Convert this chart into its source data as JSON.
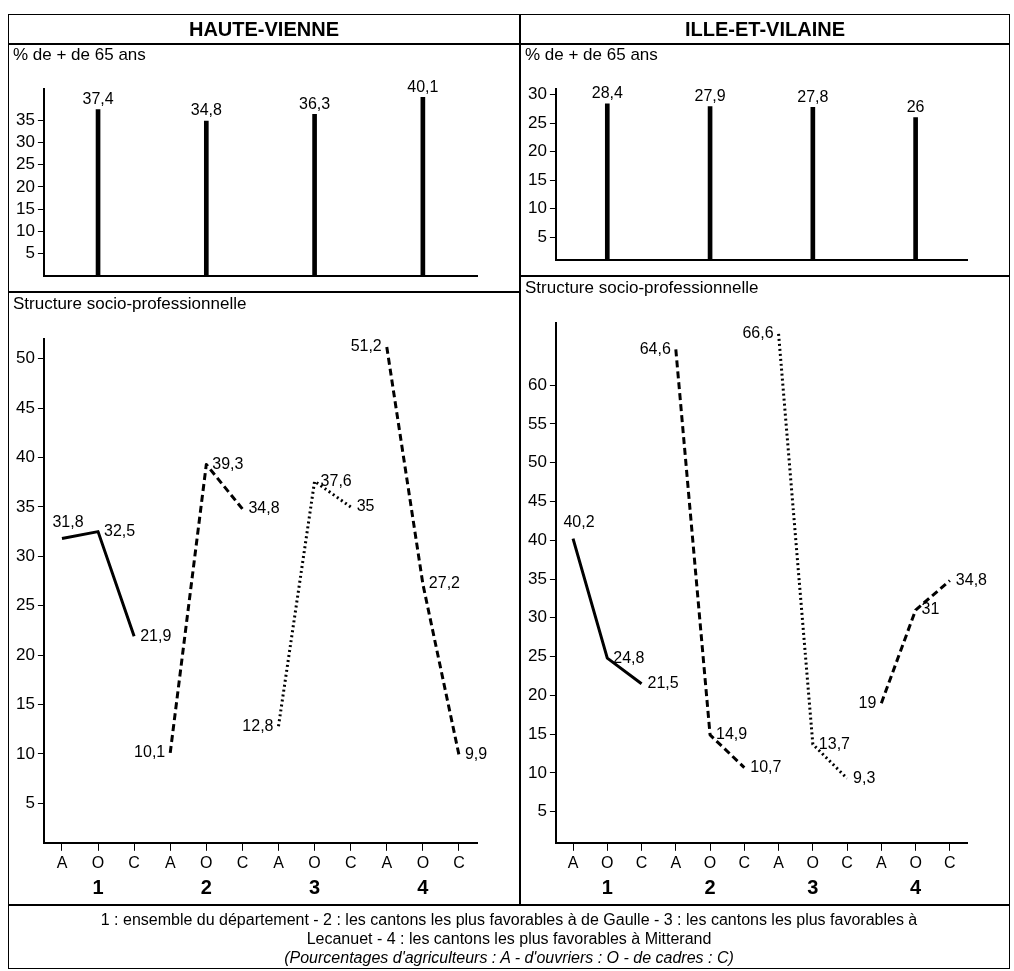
{
  "chart_data": [
    {
      "type": "bar",
      "title": "HAUTE-VIENNE",
      "ylabel": "% de + de 65 ans",
      "categories": [
        null,
        null,
        null,
        null
      ],
      "values": [
        37.4,
        34.8,
        36.3,
        40.1
      ],
      "value_labels": [
        "37,4",
        "34,8",
        "36,3",
        "40,1"
      ],
      "color": "#000000",
      "ylim": [
        0,
        42
      ],
      "yticks": [
        5,
        10,
        15,
        20,
        25,
        30,
        35
      ],
      "grid": false,
      "tick_labels": "y"
    },
    {
      "type": "line",
      "title": "Structure socio-professionnelle",
      "categories": [
        "A",
        "O",
        "C",
        "A",
        "O",
        "C",
        "A",
        "O",
        "C",
        "A",
        "O",
        "C"
      ],
      "series": [
        {
          "color": "#000000",
          "line_style": "solid",
          "values": [
            31.8,
            32.5,
            21.9,
            null,
            null,
            null,
            null,
            null,
            null,
            null,
            null,
            null
          ],
          "value_labels": [
            "31,8",
            "32,5",
            "21,9",
            null,
            null,
            null,
            null,
            null,
            null,
            null,
            null,
            null
          ]
        },
        {
          "color": "#000000",
          "line_style": "dashed",
          "values": [
            null,
            null,
            null,
            10.1,
            39.3,
            34.8,
            null,
            null,
            null,
            null,
            null,
            null
          ],
          "value_labels": [
            null,
            null,
            null,
            "10,1",
            "39,3",
            "34,8",
            null,
            null,
            null,
            null,
            null,
            null
          ]
        },
        {
          "color": "#000000",
          "line_style": "dotted",
          "values": [
            null,
            null,
            null,
            null,
            null,
            null,
            12.8,
            37.6,
            35,
            null,
            null,
            null
          ],
          "value_labels": [
            null,
            null,
            null,
            null,
            null,
            null,
            "12,8",
            "37,6",
            "35",
            null,
            null,
            null
          ]
        },
        {
          "color": "#000000",
          "line_style": "dashed",
          "values": [
            null,
            null,
            null,
            null,
            null,
            null,
            null,
            null,
            null,
            51.2,
            27.2,
            9.9
          ],
          "value_labels": [
            null,
            null,
            null,
            null,
            null,
            null,
            null,
            null,
            null,
            "51,2",
            "27,2",
            "9,9"
          ]
        }
      ],
      "annotations": [
        "1",
        "2",
        "3",
        "4"
      ],
      "ylim": [
        1,
        52
      ],
      "yticks": [
        5,
        10,
        15,
        20,
        25,
        30,
        35,
        40,
        45,
        50
      ],
      "grid": false,
      "marker": "none"
    },
    {
      "type": "bar",
      "title": "ILLE-ET-VILAINE",
      "ylabel": "% de + de 65 ans",
      "categories": [
        null,
        null,
        null,
        null
      ],
      "values": [
        28.4,
        27.9,
        27.8,
        26
      ],
      "value_labels": [
        "28,4",
        "27,9",
        "27,8",
        "26"
      ],
      "color": "#000000",
      "ylim": [
        1,
        31
      ],
      "yticks": [
        5,
        10,
        15,
        20,
        25,
        30
      ],
      "grid": false,
      "tick_labels": "y"
    },
    {
      "type": "line",
      "title": "Structure socio-professionnelle",
      "categories": [
        "A",
        "O",
        "C",
        "A",
        "O",
        "C",
        "A",
        "O",
        "C",
        "A",
        "O",
        "C"
      ],
      "series": [
        {
          "color": "#000000",
          "line_style": "solid",
          "values": [
            40.2,
            24.8,
            21.5,
            null,
            null,
            null,
            null,
            null,
            null,
            null,
            null,
            null
          ],
          "value_labels": [
            "40,2",
            "24,8",
            "21,5",
            null,
            null,
            null,
            null,
            null,
            null,
            null,
            null,
            null
          ]
        },
        {
          "color": "#000000",
          "line_style": "dashed",
          "values": [
            null,
            null,
            null,
            64.6,
            14.9,
            10.7,
            null,
            null,
            null,
            null,
            null,
            null
          ],
          "value_labels": [
            null,
            null,
            null,
            "64,6",
            "14,9",
            "10,7",
            null,
            null,
            null,
            null,
            null,
            null
          ]
        },
        {
          "color": "#000000",
          "line_style": "dotted",
          "values": [
            null,
            null,
            null,
            null,
            null,
            null,
            66.6,
            13.7,
            9.3,
            null,
            null,
            null
          ],
          "value_labels": [
            null,
            null,
            null,
            null,
            null,
            null,
            "66,6",
            "13,7",
            "9,3",
            null,
            null,
            null
          ]
        },
        {
          "color": "#000000",
          "line_style": "dashed",
          "values": [
            null,
            null,
            null,
            null,
            null,
            null,
            null,
            null,
            null,
            19,
            31,
            34.8
          ],
          "value_labels": [
            null,
            null,
            null,
            null,
            null,
            null,
            null,
            null,
            null,
            "19",
            "31",
            "34,8"
          ]
        }
      ],
      "annotations": [
        "1",
        "2",
        "3",
        "4"
      ],
      "ylim": [
        1,
        68
      ],
      "yticks": [
        5,
        10,
        15,
        20,
        25,
        30,
        35,
        40,
        45,
        50,
        55,
        60
      ],
      "grid": false,
      "marker": "none"
    },
    {
      "type": "other",
      "annotations": [
        "1 : ensemble du département - 2 : les cantons les plus favorables à de Gaulle - 3 : les cantons les plus favorables à Lecanuet - 4 : les cantons les plus favorables à Mitterand",
        "(Pourcentages d'agriculteurs : A - d'ouvriers : O - de cadres : C)"
      ]
    }
  ]
}
